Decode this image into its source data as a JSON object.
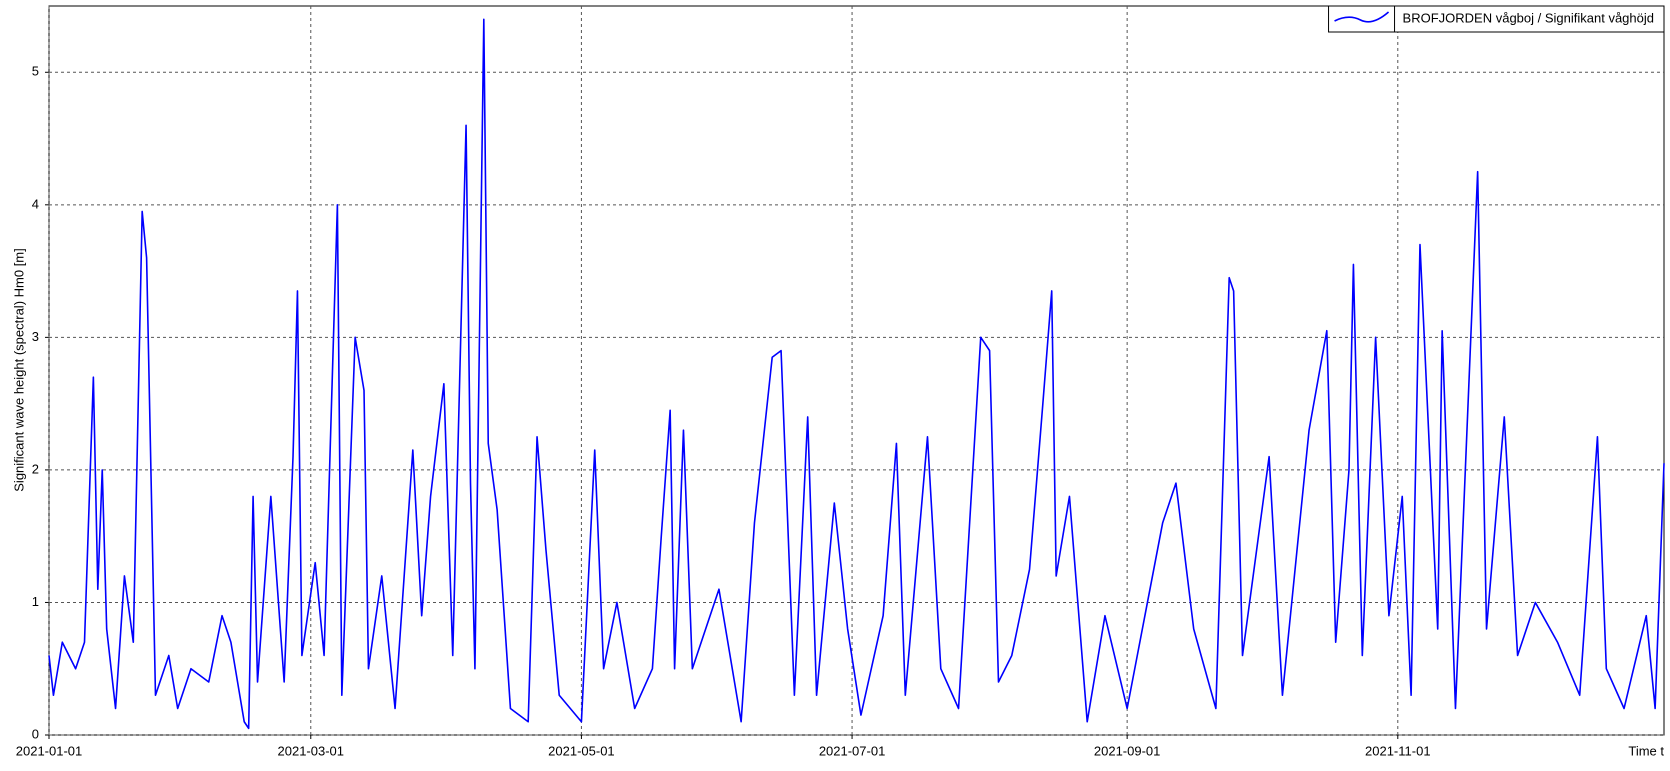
{
  "chart_data": {
    "type": "line",
    "ylabel": "Significant wave height (spectral) Hm0 [m]",
    "xlabel": "Time t",
    "legend_position": "top-right",
    "grid": true,
    "xlim": [
      "2021-01-01",
      "2021-12-31"
    ],
    "xticks": [
      "2021-01-01",
      "2021-03-01",
      "2021-05-01",
      "2021-07-01",
      "2021-09-01",
      "2021-11-01"
    ],
    "ylim": [
      0,
      5.5
    ],
    "yticks": [
      0,
      1,
      2,
      3,
      4,
      5
    ],
    "x": [
      "2021-01-01",
      "2021-01-02",
      "2021-01-04",
      "2021-01-07",
      "2021-01-09",
      "2021-01-11",
      "2021-01-12",
      "2021-01-13",
      "2021-01-14",
      "2021-01-16",
      "2021-01-18",
      "2021-01-20",
      "2021-01-22",
      "2021-01-23",
      "2021-01-25",
      "2021-01-28",
      "2021-01-30",
      "2021-02-02",
      "2021-02-06",
      "2021-02-09",
      "2021-02-11",
      "2021-02-14",
      "2021-02-15",
      "2021-02-16",
      "2021-02-17",
      "2021-02-20",
      "2021-02-23",
      "2021-02-25",
      "2021-02-26",
      "2021-02-27",
      "2021-03-02",
      "2021-03-04",
      "2021-03-07",
      "2021-03-08",
      "2021-03-11",
      "2021-03-13",
      "2021-03-14",
      "2021-03-17",
      "2021-03-20",
      "2021-03-24",
      "2021-03-26",
      "2021-03-28",
      "2021-03-31",
      "2021-04-02",
      "2021-04-05",
      "2021-04-06",
      "2021-04-07",
      "2021-04-09",
      "2021-04-10",
      "2021-04-12",
      "2021-04-15",
      "2021-04-19",
      "2021-04-21",
      "2021-04-23",
      "2021-04-26",
      "2021-05-01",
      "2021-05-04",
      "2021-05-06",
      "2021-05-09",
      "2021-05-13",
      "2021-05-17",
      "2021-05-19",
      "2021-05-21",
      "2021-05-22",
      "2021-05-24",
      "2021-05-26",
      "2021-06-01",
      "2021-06-06",
      "2021-06-09",
      "2021-06-13",
      "2021-06-15",
      "2021-06-18",
      "2021-06-21",
      "2021-06-23",
      "2021-06-27",
      "2021-06-30",
      "2021-07-03",
      "2021-07-08",
      "2021-07-11",
      "2021-07-13",
      "2021-07-18",
      "2021-07-21",
      "2021-07-25",
      "2021-07-30",
      "2021-08-01",
      "2021-08-03",
      "2021-08-06",
      "2021-08-10",
      "2021-08-13",
      "2021-08-15",
      "2021-08-16",
      "2021-08-19",
      "2021-08-23",
      "2021-08-27",
      "2021-09-01",
      "2021-09-05",
      "2021-09-09",
      "2021-09-12",
      "2021-09-16",
      "2021-09-21",
      "2021-09-24",
      "2021-09-25",
      "2021-09-27",
      "2021-10-03",
      "2021-10-06",
      "2021-10-12",
      "2021-10-16",
      "2021-10-18",
      "2021-10-21",
      "2021-10-22",
      "2021-10-24",
      "2021-10-27",
      "2021-10-30",
      "2021-11-02",
      "2021-11-04",
      "2021-11-06",
      "2021-11-10",
      "2021-11-11",
      "2021-11-14",
      "2021-11-19",
      "2021-11-21",
      "2021-11-25",
      "2021-11-28",
      "2021-12-02",
      "2021-12-07",
      "2021-12-12",
      "2021-12-16",
      "2021-12-18",
      "2021-12-22",
      "2021-12-27",
      "2021-12-29",
      "2021-12-31"
    ],
    "series": [
      {
        "name": "BROFJORDEN vågboj / Signifikant våghöjd",
        "color": "#0000ff",
        "values": [
          0.6,
          0.3,
          0.7,
          0.5,
          0.7,
          2.7,
          1.1,
          2.0,
          0.8,
          0.2,
          1.2,
          0.7,
          3.95,
          3.6,
          0.3,
          0.6,
          0.2,
          0.5,
          0.4,
          0.9,
          0.7,
          0.1,
          0.05,
          1.8,
          0.4,
          1.8,
          0.4,
          2.1,
          3.35,
          0.6,
          1.3,
          0.6,
          4.0,
          0.3,
          3.0,
          2.6,
          0.5,
          1.2,
          0.2,
          2.15,
          0.9,
          1.8,
          2.65,
          0.6,
          4.6,
          1.9,
          0.5,
          5.4,
          2.2,
          1.7,
          0.2,
          0.1,
          2.25,
          1.4,
          0.3,
          0.1,
          2.15,
          0.5,
          1.0,
          0.2,
          0.5,
          1.5,
          2.45,
          0.5,
          2.3,
          0.5,
          1.1,
          0.1,
          1.6,
          2.85,
          2.9,
          0.3,
          2.4,
          0.3,
          1.75,
          0.8,
          0.15,
          0.9,
          2.2,
          0.3,
          2.25,
          0.5,
          0.2,
          3.0,
          2.9,
          0.4,
          0.6,
          1.25,
          2.5,
          3.35,
          1.2,
          1.8,
          0.1,
          0.9,
          0.2,
          0.9,
          1.6,
          1.9,
          0.8,
          0.2,
          3.45,
          3.35,
          0.6,
          2.1,
          0.3,
          2.3,
          3.05,
          0.7,
          2.0,
          3.55,
          0.6,
          3.0,
          0.9,
          1.8,
          0.3,
          3.7,
          0.8,
          3.05,
          0.2,
          4.25,
          0.8,
          2.4,
          0.6,
          1.0,
          0.7,
          0.3,
          2.25,
          0.5,
          0.2,
          0.9,
          0.2,
          2.05
        ]
      }
    ]
  }
}
